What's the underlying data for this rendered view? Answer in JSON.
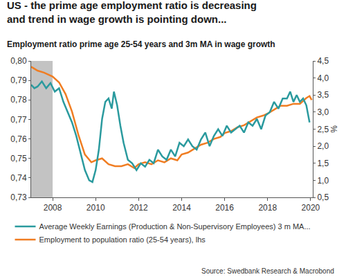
{
  "chart_data": {
    "type": "line",
    "title": "US - the prime age employment ratio is decreasing and trend in wage growth is pointing down...",
    "subtitle": "Employment ratio prime age 25-54 years and 3m MA in wage growth",
    "y2label": "%",
    "source": "Source: Swedbank Research & Macrobond",
    "legend": "bottom",
    "grid": false,
    "xlim": [
      2007,
      2020.1
    ],
    "xticks": [
      2008,
      2010,
      2012,
      2014,
      2016,
      2018,
      2020
    ],
    "ylim": [
      0.73,
      0.8
    ],
    "yticks": [
      {
        "value": 0.73,
        "label": "0,73"
      },
      {
        "value": 0.74,
        "label": "0,74"
      },
      {
        "value": 0.75,
        "label": "0,75"
      },
      {
        "value": 0.76,
        "label": "0,76"
      },
      {
        "value": 0.77,
        "label": "0,77"
      },
      {
        "value": 0.78,
        "label": "0,78"
      },
      {
        "value": 0.79,
        "label": "0,79"
      },
      {
        "value": 0.8,
        "label": "0,80"
      }
    ],
    "y2lim": [
      0.5,
      4.5
    ],
    "y2ticks": [
      {
        "value": 0.5,
        "label": "0,5"
      },
      {
        "value": 1,
        "label": "1,0"
      },
      {
        "value": 1.5,
        "label": "1,5"
      },
      {
        "value": 2,
        "label": "2,0"
      },
      {
        "value": 2.5,
        "label": "2,5"
      },
      {
        "value": 3,
        "label": "3,0"
      },
      {
        "value": 3.5,
        "label": "3,5"
      },
      {
        "value": 4,
        "label": "4,0"
      },
      {
        "value": 4.5,
        "label": "4,5"
      }
    ],
    "shaded": {
      "x0": 2007,
      "x1": 2008,
      "color": "#c3c3c3"
    },
    "series": [
      {
        "name": "Average Weekly Earnings (Production & Non-Supervisory Employees) 3 m MA...",
        "color": "#2a9a9e",
        "axis": "y2",
        "x": [
          2007.0,
          2007.15,
          2007.3,
          2007.5,
          2007.7,
          2007.9,
          2008.1,
          2008.3,
          2008.5,
          2008.7,
          2008.9,
          2009.1,
          2009.3,
          2009.5,
          2009.7,
          2009.85,
          2010.0,
          2010.15,
          2010.3,
          2010.45,
          2010.6,
          2010.75,
          2010.85,
          2011.0,
          2011.15,
          2011.3,
          2011.5,
          2011.7,
          2011.9,
          2012.1,
          2012.3,
          2012.5,
          2012.7,
          2012.9,
          2013.1,
          2013.3,
          2013.5,
          2013.7,
          2013.9,
          2014.1,
          2014.3,
          2014.5,
          2014.7,
          2014.9,
          2015.1,
          2015.3,
          2015.5,
          2015.7,
          2015.9,
          2016.1,
          2016.3,
          2016.5,
          2016.7,
          2016.9,
          2017.1,
          2017.3,
          2017.5,
          2017.7,
          2017.9,
          2018.1,
          2018.3,
          2018.5,
          2018.7,
          2018.9,
          2019.05,
          2019.2,
          2019.35,
          2019.5,
          2019.65,
          2019.8,
          2019.95
        ],
        "values": [
          3.8,
          3.7,
          3.75,
          3.9,
          3.7,
          3.85,
          3.6,
          3.7,
          3.3,
          3.0,
          2.7,
          2.3,
          1.8,
          1.3,
          1.0,
          0.95,
          1.3,
          1.9,
          2.8,
          3.3,
          3.4,
          3.1,
          3.6,
          3.2,
          2.6,
          2.1,
          1.6,
          1.5,
          1.3,
          1.5,
          1.4,
          1.6,
          1.5,
          1.9,
          1.7,
          1.6,
          1.9,
          1.7,
          2.1,
          2.0,
          2.2,
          2.0,
          1.9,
          2.2,
          2.4,
          2.0,
          2.3,
          2.5,
          2.3,
          2.6,
          2.4,
          2.5,
          2.6,
          2.4,
          2.7,
          2.6,
          2.8,
          2.5,
          2.9,
          3.0,
          3.3,
          3.1,
          3.4,
          3.4,
          3.6,
          3.3,
          3.5,
          3.3,
          3.4,
          3.2,
          2.7
        ]
      },
      {
        "name": "Employment to population ratio (25-54 years), lhs",
        "color": "#f07d22",
        "axis": "y",
        "x": [
          2007.0,
          2007.3,
          2007.6,
          2008.0,
          2008.3,
          2008.6,
          2008.9,
          2009.2,
          2009.5,
          2009.8,
          2010.0,
          2010.3,
          2010.6,
          2010.9,
          2011.2,
          2011.5,
          2011.8,
          2012.0,
          2012.3,
          2012.6,
          2012.9,
          2013.2,
          2013.5,
          2013.8,
          2014.0,
          2014.3,
          2014.6,
          2014.9,
          2015.2,
          2015.5,
          2015.8,
          2016.0,
          2016.3,
          2016.6,
          2016.9,
          2017.2,
          2017.5,
          2017.8,
          2018.0,
          2018.3,
          2018.6,
          2018.9,
          2019.2,
          2019.5,
          2019.8,
          2019.95,
          2020.05
        ],
        "values": [
          0.797,
          0.795,
          0.794,
          0.792,
          0.789,
          0.783,
          0.774,
          0.762,
          0.752,
          0.748,
          0.749,
          0.75,
          0.747,
          0.746,
          0.746,
          0.747,
          0.745,
          0.747,
          0.748,
          0.747,
          0.749,
          0.748,
          0.75,
          0.749,
          0.752,
          0.753,
          0.755,
          0.757,
          0.758,
          0.76,
          0.761,
          0.763,
          0.764,
          0.766,
          0.767,
          0.769,
          0.771,
          0.772,
          0.773,
          0.775,
          0.777,
          0.777,
          0.778,
          0.778,
          0.781,
          0.782,
          0.78
        ]
      }
    ]
  }
}
